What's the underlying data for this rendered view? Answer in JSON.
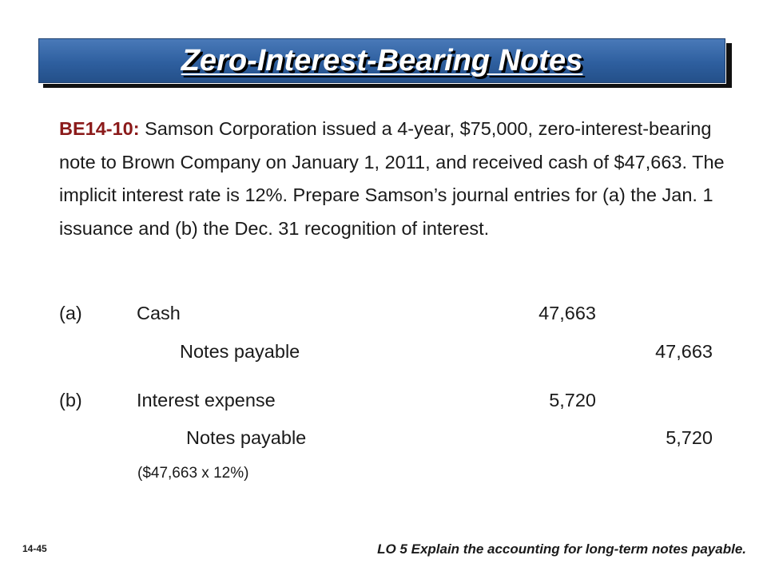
{
  "title": "Zero-Interest-Bearing Notes",
  "problem": {
    "ref": "BE14-10:",
    "text": " Samson Corporation issued a 4-year, $75,000, zero-interest-bearing note to Brown Company on January 1, 2011, and received cash of $47,663. The implicit interest rate is 12%. Prepare Samson’s journal entries for (a) the Jan. 1 issuance and (b) the Dec. 31 recognition of interest."
  },
  "entries": {
    "a": {
      "label": "(a)",
      "debit_account": "Cash",
      "debit_amount": "47,663",
      "credit_account": "Notes payable",
      "credit_amount": "47,663"
    },
    "b": {
      "label": "(b)",
      "debit_account": "Interest expense",
      "debit_amount": "5,720",
      "credit_account": "Notes payable",
      "credit_amount": "5,720",
      "note": "($47,663 x 12%)"
    }
  },
  "footer": {
    "page": "14-45",
    "lo": "LO 5  Explain the accounting for long-term notes payable."
  }
}
